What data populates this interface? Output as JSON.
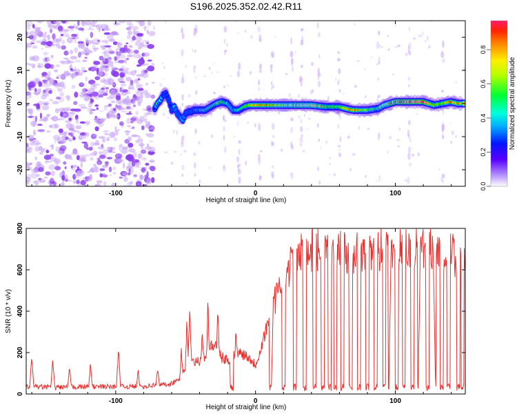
{
  "title": "S196.2025.352.02.42.R11",
  "colors": {
    "line": "#e8302f",
    "axis": "#000000",
    "noise": "#8a3cf0",
    "noise_light": "#c9a8f5"
  },
  "chart_data": [
    {
      "type": "heatmap",
      "name": "spectrogram",
      "xlabel": "Height of straight line (km)",
      "ylabel": "Frequency (Hz)",
      "xlim": [
        -164,
        150
      ],
      "ylim": [
        -25,
        25
      ],
      "xticks": [
        -100,
        0,
        100
      ],
      "xtick_labels": [
        "-100",
        "0",
        "100"
      ],
      "yticks": [
        -20,
        -10,
        0,
        10,
        20
      ],
      "ytick_labels": [
        "-20",
        "-10",
        "0",
        "10",
        "20"
      ],
      "colorbar": {
        "label": "Normalized spectral amplitude",
        "range": [
          0,
          0.97
        ],
        "ticks": [
          0.0,
          0.2,
          0.4,
          0.6,
          0.8
        ],
        "tick_labels": [
          "0.0",
          "0.2",
          "0.4",
          "0.6",
          "0.8"
        ]
      },
      "ridge": {
        "x": [
          -72,
          -70,
          -68,
          -66,
          -64,
          -62,
          -60,
          -58,
          -56,
          -54,
          -52,
          -50,
          -48,
          -46,
          -44,
          -40,
          -36,
          -32,
          -28,
          -24,
          -20,
          -16,
          -12,
          -8,
          -4,
          0,
          10,
          20,
          30,
          40,
          50,
          60,
          70,
          80,
          88,
          92,
          96,
          100,
          110,
          120,
          128,
          134,
          140,
          145,
          149
        ],
        "y": [
          -1.5,
          0,
          1,
          2.5,
          3,
          1,
          -2,
          -1,
          -3,
          -4,
          -5,
          -3,
          -2.5,
          -2.5,
          -2,
          -2,
          -2,
          -1,
          0,
          0.5,
          0,
          -2,
          -2,
          -1,
          -0.5,
          -0.5,
          -0.5,
          -0.5,
          -0.5,
          -0.5,
          -1,
          -1,
          -2,
          -2,
          -1.5,
          -0.5,
          0,
          0.5,
          0.5,
          0.5,
          -0.5,
          0,
          0.5,
          0,
          0
        ],
        "amp": [
          0.3,
          0.5,
          0.45,
          0.3,
          0.25,
          0.3,
          0.2,
          0.35,
          0.3,
          0.35,
          0.4,
          0.3,
          0.3,
          0.35,
          0.3,
          0.4,
          0.45,
          0.5,
          0.55,
          0.6,
          0.45,
          0.35,
          0.45,
          0.55,
          0.7,
          0.85,
          0.85,
          0.8,
          0.85,
          0.75,
          0.6,
          0.55,
          0.9,
          0.7,
          0.55,
          0.75,
          0.85,
          0.95,
          0.95,
          0.9,
          0.7,
          0.6,
          0.85,
          0.9,
          0.8
        ]
      }
    },
    {
      "type": "line",
      "name": "snr",
      "xlabel": "Height of straight line (km)",
      "ylabel": "SNR (10 * v/v)",
      "xlim": [
        -164,
        150
      ],
      "ylim": [
        0,
        800
      ],
      "xticks": [
        -100,
        0,
        100
      ],
      "xtick_labels": [
        "-100",
        "0",
        "100"
      ],
      "yticks": [
        0,
        200,
        400,
        600,
        800
      ],
      "ytick_labels": [
        "0",
        "200",
        "400",
        "600",
        "800"
      ],
      "baseline": {
        "x": [
          -164,
          -140,
          -120,
          -100,
          -80,
          -60,
          -55,
          -50,
          -45,
          -40,
          -35,
          -30,
          -25,
          -20,
          -15,
          -10,
          -5,
          0,
          5,
          10,
          15,
          20,
          25,
          30,
          40,
          50,
          60,
          80,
          100,
          120,
          140,
          150
        ],
        "y": [
          30,
          28,
          30,
          30,
          32,
          45,
          70,
          120,
          150,
          160,
          200,
          240,
          180,
          160,
          190,
          200,
          180,
          140,
          250,
          380,
          470,
          540,
          630,
          670,
          690,
          700,
          680,
          690,
          700,
          690,
          680,
          650
        ]
      },
      "dips": [
        -17,
        11,
        20,
        28,
        35,
        42,
        48,
        53,
        57,
        62,
        68,
        74,
        80,
        86,
        92,
        96,
        101,
        106,
        112,
        117,
        123,
        128,
        133,
        138,
        145,
        148
      ],
      "spikes": [
        {
          "x": -160,
          "y": 190
        },
        {
          "x": -145,
          "y": 165
        },
        {
          "x": -133,
          "y": 130
        },
        {
          "x": -118,
          "y": 150
        },
        {
          "x": -98,
          "y": 225
        },
        {
          "x": -84,
          "y": 120
        },
        {
          "x": -70,
          "y": 135
        },
        {
          "x": -53,
          "y": 220
        },
        {
          "x": -49,
          "y": 390
        },
        {
          "x": -47,
          "y": 440
        },
        {
          "x": -38,
          "y": 330
        },
        {
          "x": -34,
          "y": 470
        },
        {
          "x": -27,
          "y": 440
        },
        {
          "x": -14,
          "y": 350
        },
        {
          "x": 13,
          "y": 520
        },
        {
          "x": 118,
          "y": 800
        },
        {
          "x": 127,
          "y": 780
        },
        {
          "x": 97,
          "y": 760
        }
      ]
    }
  ]
}
